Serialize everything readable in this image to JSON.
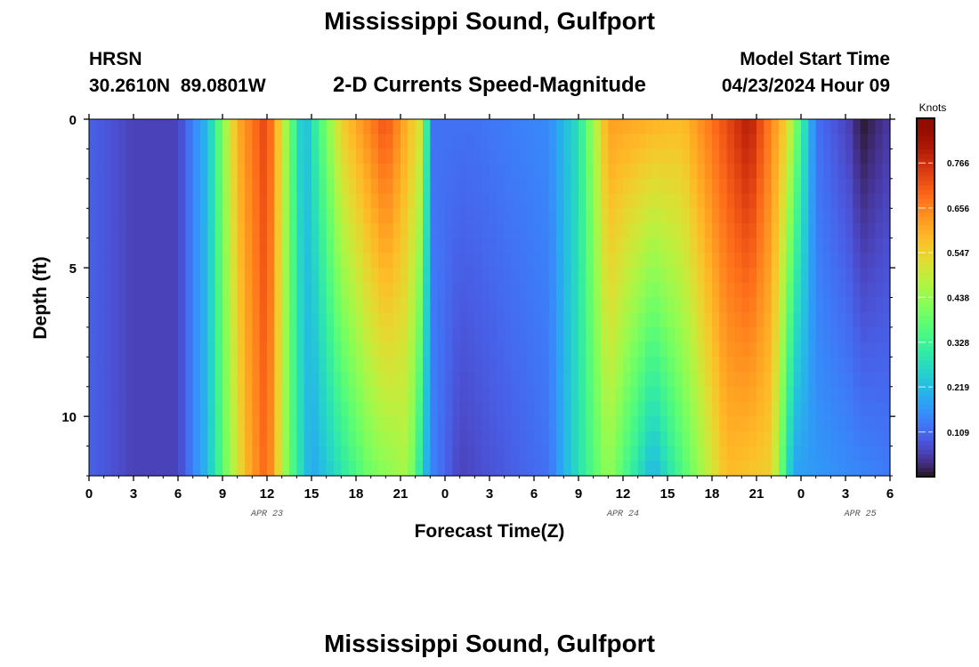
{
  "header": {
    "title": "Mississippi Sound, Gulfport",
    "station": "HRSN",
    "coords": "30.2610N  89.0801W",
    "subtitle": "2-D Currents Speed-Magnitude",
    "model_start_label": "Model Start Time",
    "model_start_value": "04/23/2024 Hour 09"
  },
  "footer": {
    "title": "Mississippi Sound, Gulfport"
  },
  "chart_data": {
    "type": "heatmap",
    "title": "2-D Currents Speed-Magnitude",
    "xlabel": "Forecast Time(Z)",
    "ylabel": "Depth (ft)",
    "x_tick_labels": [
      "0",
      "3",
      "6",
      "9",
      "12",
      "15",
      "18",
      "21",
      "0",
      "3",
      "6",
      "9",
      "12",
      "15",
      "18",
      "21",
      "0",
      "3",
      "6"
    ],
    "x_range_hours": [
      0,
      54
    ],
    "date_labels": [
      {
        "text": "APR 23",
        "hour": 12
      },
      {
        "text": "APR 24",
        "hour": 36
      },
      {
        "text": "APR 25",
        "hour": 52
      }
    ],
    "y_tick_labels": [
      "0",
      "5",
      "10"
    ],
    "y_range_ft": [
      0,
      12
    ],
    "y_inverted": true,
    "colorbar": {
      "unit": "Knots",
      "tick_labels": [
        "0.766",
        "0.656",
        "0.547",
        "0.438",
        "0.328",
        "0.219",
        "0.109"
      ],
      "range": [
        0,
        0.875
      ],
      "colormap": "turbo"
    },
    "surface_speed_knots_by_hour": [
      {
        "hour": 0,
        "speed": 0.1
      },
      {
        "hour": 3,
        "speed": 0.06
      },
      {
        "hour": 6,
        "speed": 0.06
      },
      {
        "hour": 8,
        "speed": 0.22
      },
      {
        "hour": 10,
        "speed": 0.6
      },
      {
        "hour": 12,
        "speed": 0.74
      },
      {
        "hour": 13.5,
        "speed": 0.4
      },
      {
        "hour": 14.5,
        "speed": 0.2
      },
      {
        "hour": 17,
        "speed": 0.55
      },
      {
        "hour": 20,
        "speed": 0.72
      },
      {
        "hour": 22.5,
        "speed": 0.5
      },
      {
        "hour": 23,
        "speed": 0.12
      },
      {
        "hour": 26,
        "speed": 0.12
      },
      {
        "hour": 31,
        "speed": 0.15
      },
      {
        "hour": 33,
        "speed": 0.28
      },
      {
        "hour": 35,
        "speed": 0.62
      },
      {
        "hour": 40,
        "speed": 0.58
      },
      {
        "hour": 44.5,
        "speed": 0.8
      },
      {
        "hour": 47,
        "speed": 0.55
      },
      {
        "hour": 49,
        "speed": 0.12
      },
      {
        "hour": 51.5,
        "speed": 0.05
      },
      {
        "hour": 52,
        "speed": 0.0
      },
      {
        "hour": 54,
        "speed": 0.05
      }
    ],
    "bottom_speed_knots_by_hour": [
      {
        "hour": 0,
        "speed": 0.1
      },
      {
        "hour": 3,
        "speed": 0.06
      },
      {
        "hour": 6,
        "speed": 0.06
      },
      {
        "hour": 8,
        "speed": 0.22
      },
      {
        "hour": 10.5,
        "speed": 0.58
      },
      {
        "hour": 12,
        "speed": 0.7
      },
      {
        "hour": 13.5,
        "speed": 0.38
      },
      {
        "hour": 15,
        "speed": 0.18
      },
      {
        "hour": 19,
        "speed": 0.4
      },
      {
        "hour": 21.5,
        "speed": 0.46
      },
      {
        "hour": 23,
        "speed": 0.15
      },
      {
        "hour": 25,
        "speed": 0.06
      },
      {
        "hour": 31,
        "speed": 0.12
      },
      {
        "hour": 35,
        "speed": 0.44
      },
      {
        "hour": 38,
        "speed": 0.2
      },
      {
        "hour": 43,
        "speed": 0.58
      },
      {
        "hour": 46,
        "speed": 0.55
      },
      {
        "hour": 47.5,
        "speed": 0.18
      },
      {
        "hour": 54,
        "speed": 0.13
      }
    ]
  }
}
